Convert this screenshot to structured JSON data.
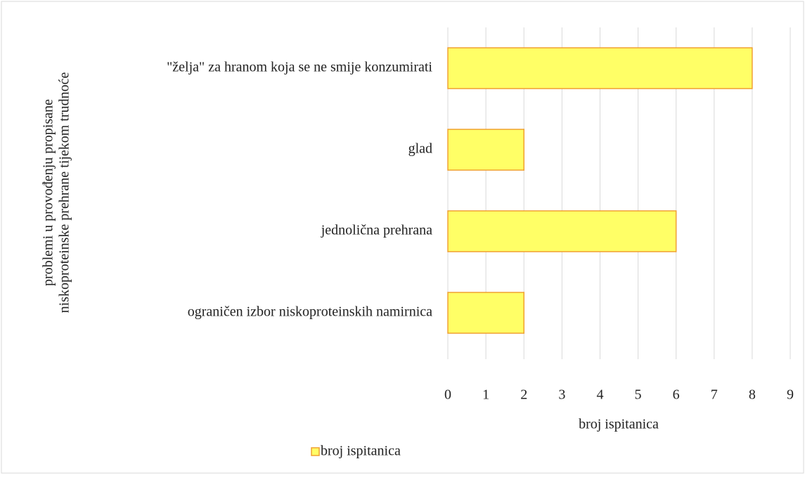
{
  "chart_data": {
    "type": "hbar",
    "ylabel": [
      "problemi u provođenju propisane",
      "niskoproteinske prehrane tijekom trudnoće"
    ],
    "xlabel": "broj ispitanica",
    "categories": [
      "\"želja\" za hranom koja se ne smije konzumirati",
      "glad",
      "jednolična prehrana",
      "ograničen izbor niskoproteinskih namirnica"
    ],
    "series": [
      {
        "name": "broj ispitanica",
        "color": "#ffff66",
        "edge_color": "#f0a030",
        "values": [
          8,
          2,
          6,
          2
        ]
      }
    ],
    "xlim": [
      0,
      9
    ],
    "xticks": [
      0,
      1,
      2,
      3,
      4,
      5,
      6,
      7,
      8,
      9
    ],
    "grid": true,
    "legend": "bottom"
  }
}
